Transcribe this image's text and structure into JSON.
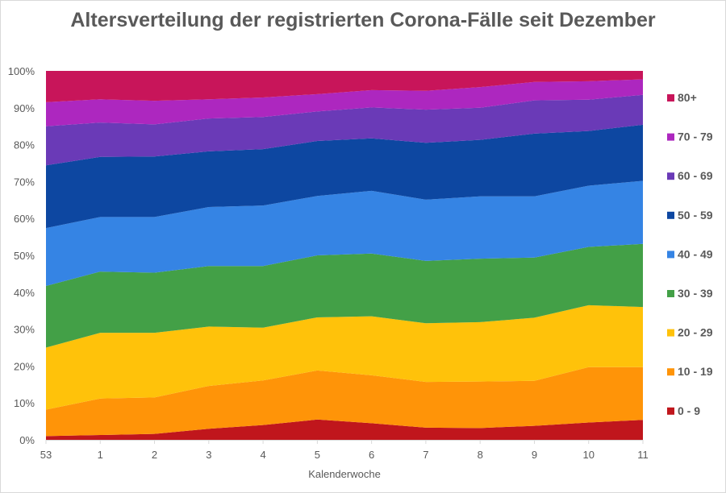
{
  "chart_data": {
    "type": "area",
    "stacked": "percent",
    "title": "Altersverteilung der registrierten Corona-Fälle seit Dezember",
    "xlabel": "Kalenderwoche",
    "ylabel": "",
    "ylim": [
      0,
      100
    ],
    "y_ticks": [
      "0%",
      "10%",
      "20%",
      "30%",
      "40%",
      "50%",
      "60%",
      "70%",
      "80%",
      "90%",
      "100%"
    ],
    "categories": [
      "53",
      "1",
      "2",
      "3",
      "4",
      "5",
      "6",
      "7",
      "8",
      "9",
      "10",
      "11"
    ],
    "legend_position": "right",
    "grid": false,
    "series": [
      {
        "name": "0 - 9",
        "color": "#c0161c",
        "values": [
          1.0,
          1.3,
          1.6,
          3.0,
          4.0,
          5.5,
          4.5,
          3.3,
          3.2,
          3.8,
          4.7,
          5.4
        ]
      },
      {
        "name": "10 - 19",
        "color": "#ff9408",
        "values": [
          7.2,
          9.9,
          9.9,
          11.6,
          12.1,
          13.3,
          13.0,
          12.4,
          12.6,
          12.2,
          15.0,
          14.3
        ]
      },
      {
        "name": "20 - 29",
        "color": "#ffc20a",
        "values": [
          16.8,
          17.8,
          17.5,
          16.1,
          14.3,
          14.4,
          16.0,
          15.9,
          16.1,
          17.1,
          16.8,
          16.3
        ]
      },
      {
        "name": "30 - 39",
        "color": "#43a047",
        "values": [
          16.7,
          16.6,
          16.3,
          16.4,
          16.7,
          16.8,
          17.0,
          16.9,
          17.2,
          16.3,
          15.8,
          17.1
        ]
      },
      {
        "name": "40 - 49",
        "color": "#3584e4",
        "values": [
          15.7,
          14.8,
          15.1,
          16.0,
          16.4,
          16.1,
          17.0,
          16.6,
          16.9,
          16.6,
          16.6,
          17.1
        ]
      },
      {
        "name": "50 - 59",
        "color": "#0d47a1",
        "values": [
          17.0,
          16.3,
          16.4,
          15.1,
          15.3,
          14.9,
          14.2,
          15.4,
          15.3,
          17.0,
          14.8,
          15.2
        ]
      },
      {
        "name": "60 - 69",
        "color": "#6a3ab7",
        "values": [
          10.6,
          9.3,
          8.7,
          8.9,
          8.7,
          8.0,
          8.4,
          9.0,
          8.7,
          9.0,
          8.5,
          8.1
        ]
      },
      {
        "name": "70 - 79",
        "color": "#ad27bf",
        "values": [
          6.5,
          6.3,
          6.4,
          5.2,
          5.3,
          4.7,
          4.7,
          5.1,
          5.6,
          5.0,
          5.0,
          4.2
        ]
      },
      {
        "name": "80+",
        "color": "#c8155a",
        "values": [
          8.5,
          7.7,
          8.1,
          7.7,
          7.2,
          6.3,
          5.2,
          5.4,
          4.4,
          3.0,
          2.8,
          2.3
        ]
      }
    ]
  }
}
